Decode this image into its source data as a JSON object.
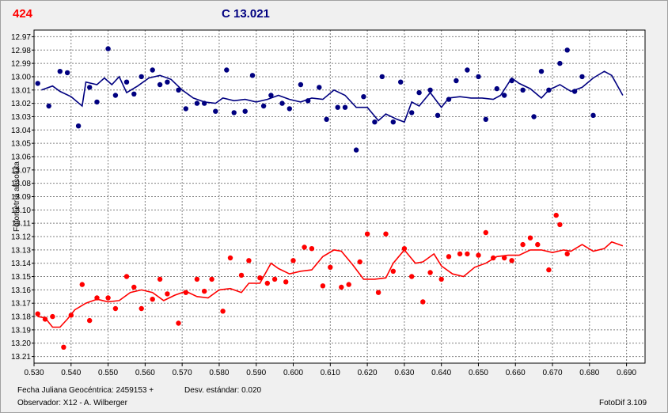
{
  "header": {
    "star_id": "424",
    "comparison_label": "C 13.021",
    "star_color": "#ff0000",
    "comparison_color": "#000080"
  },
  "footer": {
    "julian_date": "Fecha Juliana Geocéntrica: 2459153 +",
    "std_dev": "Desv. estándar: 0.020",
    "observer": "Observador: X12 - A. Wilberger",
    "software": "FotoDif 3.109"
  },
  "chart_data": {
    "type": "scatter",
    "ylabel": "Fotometría absoluta",
    "xlabel": "",
    "xlim": [
      0.53,
      0.695
    ],
    "ylim": [
      13.215,
      12.965
    ],
    "y_inverted": true,
    "grid": true,
    "x_ticks": [
      "0.530",
      "0.540",
      "0.550",
      "0.560",
      "0.570",
      "0.580",
      "0.590",
      "0.600",
      "0.610",
      "0.620",
      "0.630",
      "0.640",
      "0.650",
      "0.660",
      "0.670",
      "0.680",
      "0.690"
    ],
    "y_ticks": [
      "12.97",
      "12.98",
      "12.99",
      "13.00",
      "13.01",
      "13.02",
      "13.03",
      "13.04",
      "13.05",
      "13.06",
      "13.07",
      "13.08",
      "13.09",
      "13.10",
      "13.11",
      "13.12",
      "13.13",
      "13.14",
      "13.15",
      "13.16",
      "13.17",
      "13.18",
      "13.19",
      "13.20",
      "13.21"
    ],
    "series": [
      {
        "color": "#000080",
        "points": [
          [
            0.531,
            13.005
          ],
          [
            0.534,
            13.022
          ],
          [
            0.537,
            12.996
          ],
          [
            0.539,
            12.997
          ],
          [
            0.542,
            13.037
          ],
          [
            0.545,
            13.008
          ],
          [
            0.547,
            13.019
          ],
          [
            0.55,
            12.979
          ],
          [
            0.552,
            13.014
          ],
          [
            0.555,
            13.004
          ],
          [
            0.557,
            13.013
          ],
          [
            0.559,
            13.0
          ],
          [
            0.562,
            12.995
          ],
          [
            0.564,
            13.006
          ],
          [
            0.566,
            13.004
          ],
          [
            0.569,
            13.01
          ],
          [
            0.571,
            13.024
          ],
          [
            0.574,
            13.02
          ],
          [
            0.576,
            13.02
          ],
          [
            0.579,
            13.026
          ],
          [
            0.582,
            12.995
          ],
          [
            0.584,
            13.027
          ],
          [
            0.587,
            13.026
          ],
          [
            0.589,
            12.999
          ],
          [
            0.592,
            13.022
          ],
          [
            0.594,
            13.014
          ],
          [
            0.597,
            13.02
          ],
          [
            0.599,
            13.024
          ],
          [
            0.602,
            13.006
          ],
          [
            0.604,
            13.018
          ],
          [
            0.607,
            13.008
          ],
          [
            0.609,
            13.032
          ],
          [
            0.612,
            13.023
          ],
          [
            0.614,
            13.023
          ],
          [
            0.617,
            13.055
          ],
          [
            0.619,
            13.015
          ],
          [
            0.622,
            13.034
          ],
          [
            0.624,
            13.0
          ],
          [
            0.627,
            13.034
          ],
          [
            0.629,
            13.004
          ],
          [
            0.632,
            13.027
          ],
          [
            0.634,
            13.012
          ],
          [
            0.637,
            13.01
          ],
          [
            0.639,
            13.029
          ],
          [
            0.642,
            13.017
          ],
          [
            0.644,
            13.003
          ],
          [
            0.647,
            12.995
          ],
          [
            0.65,
            13.0
          ],
          [
            0.652,
            13.032
          ],
          [
            0.655,
            13.009
          ],
          [
            0.657,
            13.014
          ],
          [
            0.659,
            13.003
          ],
          [
            0.662,
            13.01
          ],
          [
            0.665,
            13.03
          ],
          [
            0.667,
            12.996
          ],
          [
            0.669,
            13.01
          ],
          [
            0.672,
            12.99
          ],
          [
            0.674,
            12.98
          ],
          [
            0.676,
            13.011
          ],
          [
            0.678,
            13.0
          ],
          [
            0.681,
            13.029
          ]
        ],
        "trend": [
          [
            0.532,
            13.01
          ],
          [
            0.535,
            13.007
          ],
          [
            0.537,
            13.011
          ],
          [
            0.54,
            13.015
          ],
          [
            0.543,
            13.022
          ],
          [
            0.544,
            13.004
          ],
          [
            0.547,
            13.006
          ],
          [
            0.549,
            13.001
          ],
          [
            0.551,
            13.006
          ],
          [
            0.553,
            13.0
          ],
          [
            0.555,
            13.012
          ],
          [
            0.558,
            13.007
          ],
          [
            0.561,
            13.001
          ],
          [
            0.564,
            12.999
          ],
          [
            0.567,
            13.002
          ],
          [
            0.57,
            13.01
          ],
          [
            0.573,
            13.016
          ],
          [
            0.576,
            13.019
          ],
          [
            0.579,
            13.02
          ],
          [
            0.581,
            13.016
          ],
          [
            0.584,
            13.018
          ],
          [
            0.587,
            13.017
          ],
          [
            0.59,
            13.019
          ],
          [
            0.593,
            13.017
          ],
          [
            0.596,
            13.014
          ],
          [
            0.599,
            13.017
          ],
          [
            0.602,
            13.019
          ],
          [
            0.605,
            13.016
          ],
          [
            0.608,
            13.017
          ],
          [
            0.611,
            13.01
          ],
          [
            0.614,
            13.014
          ],
          [
            0.617,
            13.023
          ],
          [
            0.62,
            13.023
          ],
          [
            0.623,
            13.033
          ],
          [
            0.625,
            13.028
          ],
          [
            0.628,
            13.032
          ],
          [
            0.63,
            13.034
          ],
          [
            0.632,
            13.019
          ],
          [
            0.634,
            13.022
          ],
          [
            0.637,
            13.012
          ],
          [
            0.64,
            13.023
          ],
          [
            0.642,
            13.016
          ],
          [
            0.645,
            13.015
          ],
          [
            0.648,
            13.016
          ],
          [
            0.651,
            13.016
          ],
          [
            0.654,
            13.017
          ],
          [
            0.656,
            13.014
          ],
          [
            0.659,
            13.001
          ],
          [
            0.661,
            13.005
          ],
          [
            0.664,
            13.009
          ],
          [
            0.667,
            13.016
          ],
          [
            0.669,
            13.01
          ],
          [
            0.672,
            13.006
          ],
          [
            0.675,
            13.011
          ],
          [
            0.678,
            13.008
          ],
          [
            0.681,
            13.001
          ],
          [
            0.684,
            12.996
          ],
          [
            0.686,
            12.999
          ],
          [
            0.689,
            13.014
          ]
        ]
      },
      {
        "color": "#ff0000",
        "points": [
          [
            0.531,
            13.178
          ],
          [
            0.533,
            13.182
          ],
          [
            0.535,
            13.18
          ],
          [
            0.538,
            13.203
          ],
          [
            0.54,
            13.179
          ],
          [
            0.543,
            13.156
          ],
          [
            0.545,
            13.183
          ],
          [
            0.547,
            13.166
          ],
          [
            0.55,
            13.166
          ],
          [
            0.552,
            13.174
          ],
          [
            0.555,
            13.15
          ],
          [
            0.557,
            13.158
          ],
          [
            0.559,
            13.174
          ],
          [
            0.562,
            13.167
          ],
          [
            0.564,
            13.152
          ],
          [
            0.566,
            13.163
          ],
          [
            0.569,
            13.185
          ],
          [
            0.571,
            13.162
          ],
          [
            0.574,
            13.152
          ],
          [
            0.576,
            13.161
          ],
          [
            0.578,
            13.152
          ],
          [
            0.581,
            13.176
          ],
          [
            0.583,
            13.136
          ],
          [
            0.586,
            13.149
          ],
          [
            0.588,
            13.138
          ],
          [
            0.591,
            13.151
          ],
          [
            0.593,
            13.155
          ],
          [
            0.595,
            13.152
          ],
          [
            0.598,
            13.154
          ],
          [
            0.6,
            13.138
          ],
          [
            0.603,
            13.128
          ],
          [
            0.605,
            13.129
          ],
          [
            0.608,
            13.157
          ],
          [
            0.61,
            13.143
          ],
          [
            0.613,
            13.158
          ],
          [
            0.615,
            13.156
          ],
          [
            0.618,
            13.139
          ],
          [
            0.62,
            13.118
          ],
          [
            0.623,
            13.162
          ],
          [
            0.625,
            13.118
          ],
          [
            0.627,
            13.146
          ],
          [
            0.63,
            13.129
          ],
          [
            0.632,
            13.15
          ],
          [
            0.635,
            13.169
          ],
          [
            0.637,
            13.147
          ],
          [
            0.64,
            13.152
          ],
          [
            0.642,
            13.135
          ],
          [
            0.645,
            13.133
          ],
          [
            0.647,
            13.133
          ],
          [
            0.65,
            13.134
          ],
          [
            0.652,
            13.117
          ],
          [
            0.654,
            13.136
          ],
          [
            0.657,
            13.136
          ],
          [
            0.659,
            13.138
          ],
          [
            0.662,
            13.126
          ],
          [
            0.664,
            13.121
          ],
          [
            0.666,
            13.126
          ],
          [
            0.669,
            13.145
          ],
          [
            0.671,
            13.104
          ],
          [
            0.674,
            13.133
          ],
          [
            0.672,
            13.111
          ]
        ],
        "trend": [
          [
            0.531,
            13.18
          ],
          [
            0.533,
            13.181
          ],
          [
            0.535,
            13.188
          ],
          [
            0.537,
            13.188
          ],
          [
            0.539,
            13.182
          ],
          [
            0.541,
            13.175
          ],
          [
            0.544,
            13.17
          ],
          [
            0.547,
            13.167
          ],
          [
            0.55,
            13.169
          ],
          [
            0.553,
            13.168
          ],
          [
            0.556,
            13.162
          ],
          [
            0.559,
            13.16
          ],
          [
            0.562,
            13.162
          ],
          [
            0.565,
            13.168
          ],
          [
            0.568,
            13.164
          ],
          [
            0.571,
            13.161
          ],
          [
            0.574,
            13.165
          ],
          [
            0.577,
            13.166
          ],
          [
            0.58,
            13.16
          ],
          [
            0.583,
            13.159
          ],
          [
            0.586,
            13.162
          ],
          [
            0.588,
            13.155
          ],
          [
            0.591,
            13.155
          ],
          [
            0.594,
            13.14
          ],
          [
            0.596,
            13.144
          ],
          [
            0.599,
            13.148
          ],
          [
            0.602,
            13.146
          ],
          [
            0.605,
            13.145
          ],
          [
            0.608,
            13.135
          ],
          [
            0.611,
            13.13
          ],
          [
            0.613,
            13.131
          ],
          [
            0.616,
            13.141
          ],
          [
            0.619,
            13.152
          ],
          [
            0.622,
            13.152
          ],
          [
            0.625,
            13.151
          ],
          [
            0.627,
            13.14
          ],
          [
            0.63,
            13.13
          ],
          [
            0.633,
            13.14
          ],
          [
            0.635,
            13.139
          ],
          [
            0.638,
            13.133
          ],
          [
            0.64,
            13.142
          ],
          [
            0.643,
            13.148
          ],
          [
            0.646,
            13.15
          ],
          [
            0.649,
            13.143
          ],
          [
            0.652,
            13.14
          ],
          [
            0.655,
            13.135
          ],
          [
            0.658,
            13.134
          ],
          [
            0.661,
            13.134
          ],
          [
            0.664,
            13.13
          ],
          [
            0.667,
            13.13
          ],
          [
            0.67,
            13.132
          ],
          [
            0.673,
            13.13
          ],
          [
            0.675,
            13.131
          ],
          [
            0.678,
            13.126
          ],
          [
            0.681,
            13.131
          ],
          [
            0.684,
            13.129
          ],
          [
            0.686,
            13.124
          ],
          [
            0.689,
            13.127
          ]
        ]
      }
    ]
  }
}
